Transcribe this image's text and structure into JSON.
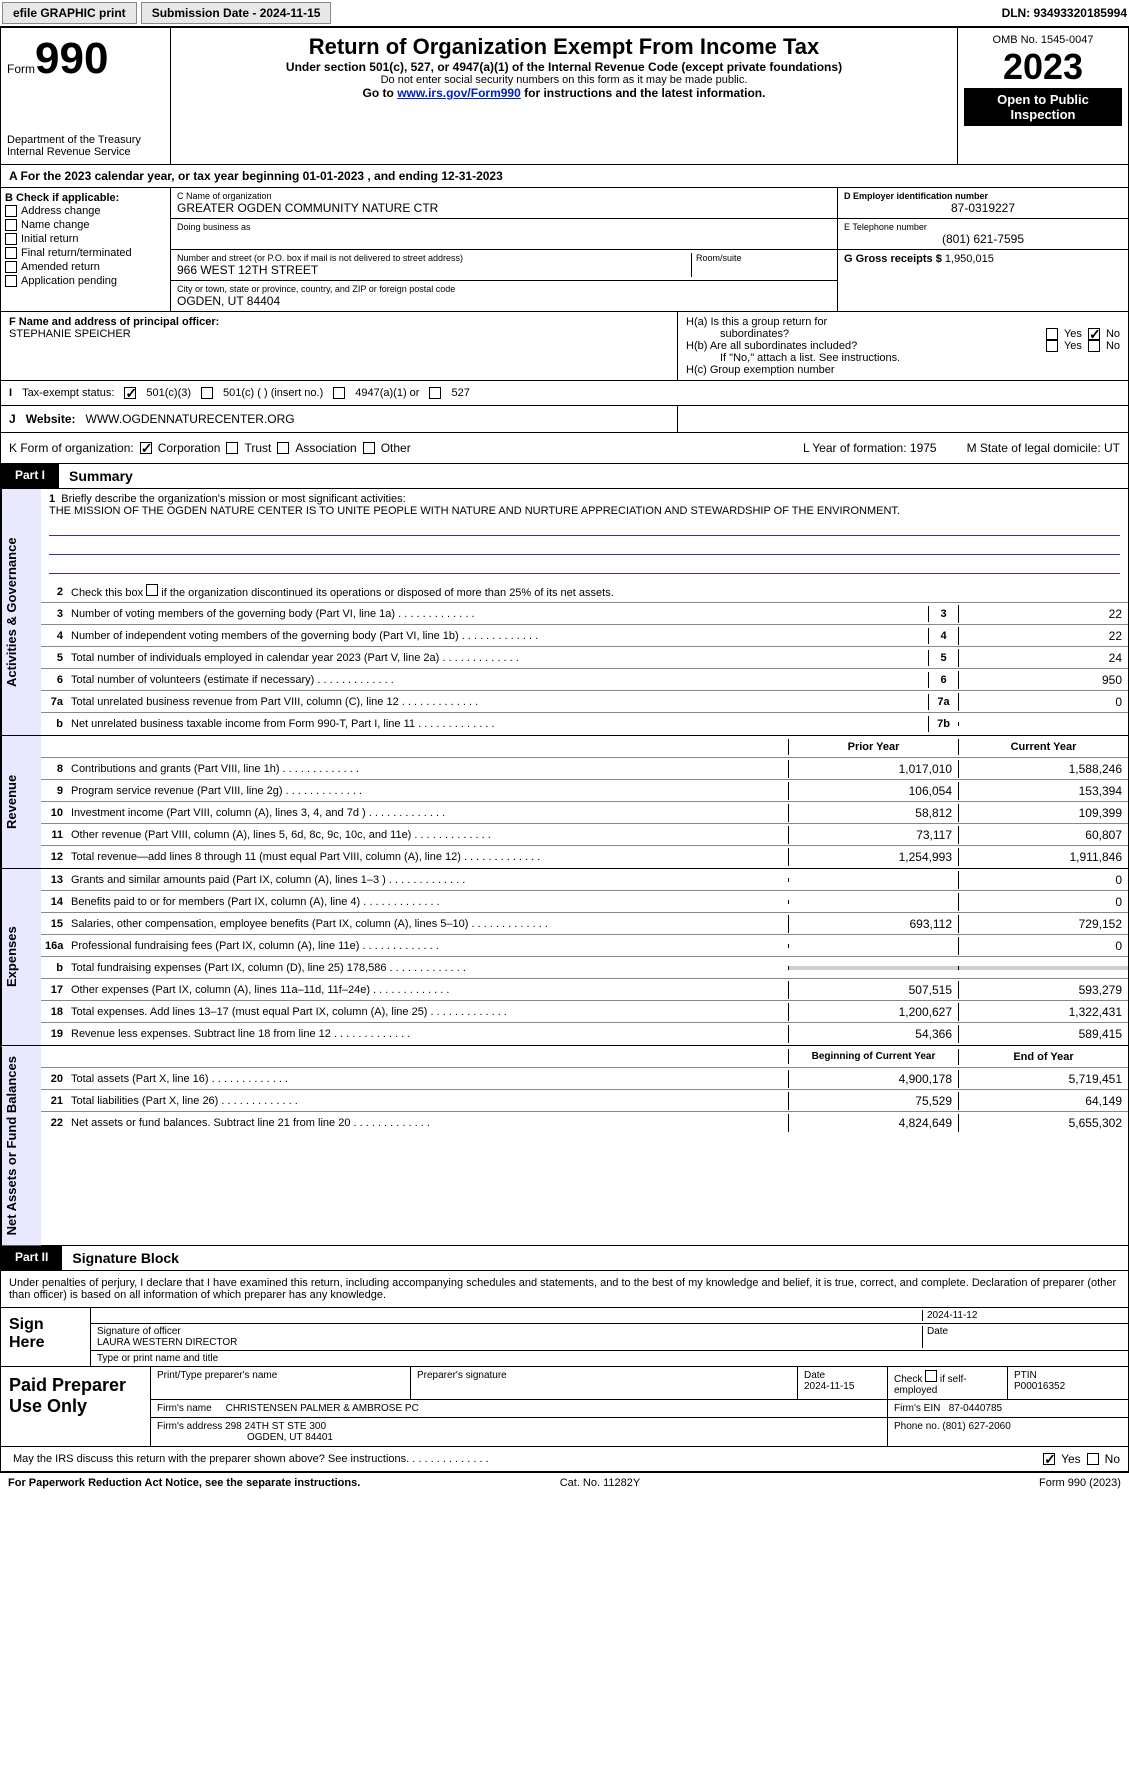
{
  "topbar": {
    "efile": "efile GRAPHIC print",
    "submission": "Submission Date - 2024-11-15",
    "dln": "DLN: 93493320185994"
  },
  "header": {
    "form": "Form",
    "num": "990",
    "title": "Return of Organization Exempt From Income Tax",
    "subtitle": "Under section 501(c), 527, or 4947(a)(1) of the Internal Revenue Code (except private foundations)",
    "warn": "Do not enter social security numbers on this form as it may be made public.",
    "goto_pre": "Go to ",
    "goto_link": "www.irs.gov/Form990",
    "goto_post": " for instructions and the latest information.",
    "dept": "Department of the Treasury",
    "irs": "Internal Revenue Service",
    "omb": "OMB No. 1545-0047",
    "year": "2023",
    "open": "Open to Public Inspection"
  },
  "a": {
    "text": "A For the 2023 calendar year, or tax year beginning 01-01-2023    , and ending 12-31-2023"
  },
  "b": {
    "lbl": "B Check if applicable:",
    "opts": [
      "Address change",
      "Name change",
      "Initial return",
      "Final return/terminated",
      "Amended return",
      "Application pending"
    ]
  },
  "c": {
    "namelbl": "C Name of organization",
    "name": "GREATER OGDEN COMMUNITY NATURE CTR",
    "dba": "Doing business as",
    "addrlbl": "Number and street (or P.O. box if mail is not delivered to street address)",
    "addr": "966 WEST 12TH STREET",
    "room": "Room/suite",
    "citylbl": "City or town, state or province, country, and ZIP or foreign postal code",
    "city": "OGDEN, UT  84404"
  },
  "d": {
    "lbl": "D Employer identification number",
    "val": "87-0319227"
  },
  "e": {
    "lbl": "E Telephone number",
    "val": "(801) 621-7595"
  },
  "g": {
    "lbl": "G Gross receipts $",
    "val": "1,950,015"
  },
  "f": {
    "lbl": "F  Name and address of principal officer:",
    "val": "STEPHANIE SPEICHER"
  },
  "h": {
    "a": "H(a)  Is this a group return for",
    "a2": "subordinates?",
    "b": "H(b)  Are all subordinates included?",
    "note": "If \"No,\" attach a list. See instructions.",
    "c": "H(c)  Group exemption number",
    "yes": "Yes",
    "no": "No"
  },
  "i": {
    "lbl": "I",
    "txt": "Tax-exempt status:",
    "opts": [
      "501(c)(3)",
      "501(c) (  ) (insert no.)",
      "4947(a)(1) or",
      "527"
    ]
  },
  "j": {
    "lbl": "J",
    "txt": "Website:",
    "val": "WWW.OGDENNATURECENTER.ORG"
  },
  "k": {
    "lbl": "K Form of organization:",
    "opts": [
      "Corporation",
      "Trust",
      "Association",
      "Other"
    ]
  },
  "l": {
    "lbl": "L Year of formation: 1975"
  },
  "m": {
    "lbl": "M State of legal domicile: UT"
  },
  "parts": {
    "p1": "Part I",
    "p1t": "Summary",
    "p2": "Part II",
    "p2t": "Signature Block"
  },
  "vtabs": {
    "gov": "Activities & Governance",
    "rev": "Revenue",
    "exp": "Expenses",
    "net": "Net Assets or Fund Balances"
  },
  "q1": {
    "lbl": "1",
    "txt": "Briefly describe the organization's mission or most significant activities:",
    "mission": "THE MISSION OF THE OGDEN NATURE CENTER IS TO UNITE PEOPLE WITH NATURE AND NURTURE APPRECIATION AND STEWARDSHIP OF THE ENVIRONMENT."
  },
  "q2": {
    "lbl": "2",
    "txt": "Check this box        if the organization discontinued its operations or disposed of more than 25% of its net assets."
  },
  "lines": [
    {
      "n": "3",
      "t": "Number of voting members of the governing body (Part VI, line 1a)",
      "box": "3",
      "v": "22"
    },
    {
      "n": "4",
      "t": "Number of independent voting members of the governing body (Part VI, line 1b)",
      "box": "4",
      "v": "22"
    },
    {
      "n": "5",
      "t": "Total number of individuals employed in calendar year 2023 (Part V, line 2a)",
      "box": "5",
      "v": "24"
    },
    {
      "n": "6",
      "t": "Total number of volunteers (estimate if necessary)",
      "box": "6",
      "v": "950"
    },
    {
      "n": "7a",
      "t": "Total unrelated business revenue from Part VIII, column (C), line 12",
      "box": "7a",
      "v": "0"
    },
    {
      "n": "b",
      "t": "Net unrelated business taxable income from Form 990-T, Part I, line 11",
      "box": "7b",
      "v": ""
    }
  ],
  "colhdr": {
    "prior": "Prior Year",
    "current": "Current Year",
    "begin": "Beginning of Current Year",
    "end": "End of Year"
  },
  "rev": [
    {
      "n": "8",
      "t": "Contributions and grants (Part VIII, line 1h)",
      "p": "1,017,010",
      "c": "1,588,246"
    },
    {
      "n": "9",
      "t": "Program service revenue (Part VIII, line 2g)",
      "p": "106,054",
      "c": "153,394"
    },
    {
      "n": "10",
      "t": "Investment income (Part VIII, column (A), lines 3, 4, and 7d )",
      "p": "58,812",
      "c": "109,399"
    },
    {
      "n": "11",
      "t": "Other revenue (Part VIII, column (A), lines 5, 6d, 8c, 9c, 10c, and 11e)",
      "p": "73,117",
      "c": "60,807"
    },
    {
      "n": "12",
      "t": "Total revenue—add lines 8 through 11 (must equal Part VIII, column (A), line 12)",
      "p": "1,254,993",
      "c": "1,911,846"
    }
  ],
  "exp": [
    {
      "n": "13",
      "t": "Grants and similar amounts paid (Part IX, column (A), lines 1–3 )",
      "p": "",
      "c": "0"
    },
    {
      "n": "14",
      "t": "Benefits paid to or for members (Part IX, column (A), line 4)",
      "p": "",
      "c": "0"
    },
    {
      "n": "15",
      "t": "Salaries, other compensation, employee benefits (Part IX, column (A), lines 5–10)",
      "p": "693,112",
      "c": "729,152"
    },
    {
      "n": "16a",
      "t": "Professional fundraising fees (Part IX, column (A), line 11e)",
      "p": "",
      "c": "0"
    },
    {
      "n": "b",
      "t": "Total fundraising expenses (Part IX, column (D), line 25) 178,586",
      "p": "shade",
      "c": "shade"
    },
    {
      "n": "17",
      "t": "Other expenses (Part IX, column (A), lines 11a–11d, 11f–24e)",
      "p": "507,515",
      "c": "593,279"
    },
    {
      "n": "18",
      "t": "Total expenses. Add lines 13–17 (must equal Part IX, column (A), line 25)",
      "p": "1,200,627",
      "c": "1,322,431"
    },
    {
      "n": "19",
      "t": "Revenue less expenses. Subtract line 18 from line 12",
      "p": "54,366",
      "c": "589,415"
    }
  ],
  "net": [
    {
      "n": "20",
      "t": "Total assets (Part X, line 16)",
      "p": "4,900,178",
      "c": "5,719,451"
    },
    {
      "n": "21",
      "t": "Total liabilities (Part X, line 26)",
      "p": "75,529",
      "c": "64,149"
    },
    {
      "n": "22",
      "t": "Net assets or fund balances. Subtract line 21 from line 20",
      "p": "4,824,649",
      "c": "5,655,302"
    }
  ],
  "sig": {
    "intro": "Under penalties of perjury, I declare that I have examined this return, including accompanying schedules and statements, and to the best of my knowledge and belief, it is true, correct, and complete. Declaration of preparer (other than officer) is based on all information of which preparer has any knowledge.",
    "sign_here": "Sign Here",
    "siglbl": "Signature of officer",
    "officer": "LAURA WESTERN  DIRECTOR",
    "typelbl": "Type or print name and title",
    "date": "2024-11-12",
    "datelbl": "Date",
    "paid": "Paid Preparer Use Only",
    "p_name_lbl": "Print/Type preparer's name",
    "p_sig_lbl": "Preparer's signature",
    "p_date_lbl": "Date",
    "p_date": "2024-11-15",
    "self": "Check        if self-employed",
    "ptin_lbl": "PTIN",
    "ptin": "P00016352",
    "firm_lbl": "Firm's name",
    "firm": "CHRISTENSEN PALMER & AMBROSE PC",
    "ein_lbl": "Firm's EIN",
    "ein": "87-0440785",
    "addr_lbl": "Firm's address",
    "addr": "298 24TH ST STE 300",
    "addr2": "OGDEN, UT  84401",
    "phone_lbl": "Phone no.",
    "phone": "(801) 627-2060"
  },
  "discuss": {
    "txt": "May the IRS discuss this return with the preparer shown above? See instructions.",
    "yes": "Yes",
    "no": "No"
  },
  "footer": {
    "l": "For Paperwork Reduction Act Notice, see the separate instructions.",
    "c": "Cat. No. 11282Y",
    "r": "Form 990 (2023)"
  }
}
